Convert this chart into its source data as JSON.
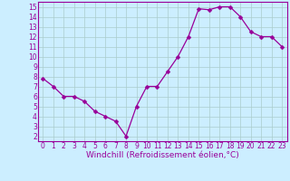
{
  "x": [
    0,
    1,
    2,
    3,
    4,
    5,
    6,
    7,
    8,
    9,
    10,
    11,
    12,
    13,
    14,
    15,
    16,
    17,
    18,
    19,
    20,
    21,
    22,
    23
  ],
  "y": [
    7.8,
    7.0,
    6.0,
    6.0,
    5.5,
    4.5,
    4.0,
    3.5,
    2.0,
    5.0,
    7.0,
    7.0,
    8.5,
    10.0,
    12.0,
    14.8,
    14.7,
    15.0,
    15.0,
    14.0,
    12.5,
    12.0,
    12.0,
    11.0
  ],
  "line_color": "#990099",
  "marker": "D",
  "markersize": 2.5,
  "linewidth": 0.9,
  "background_color": "#cceeff",
  "grid_color": "#aacccc",
  "xlabel": "Windchill (Refroidissement éolien,°C)",
  "xlabel_fontsize": 6.5,
  "xlim": [
    -0.5,
    23.5
  ],
  "ylim": [
    1.5,
    15.5
  ],
  "yticks": [
    2,
    3,
    4,
    5,
    6,
    7,
    8,
    9,
    10,
    11,
    12,
    13,
    14,
    15
  ],
  "xticks": [
    0,
    1,
    2,
    3,
    4,
    5,
    6,
    7,
    8,
    9,
    10,
    11,
    12,
    13,
    14,
    15,
    16,
    17,
    18,
    19,
    20,
    21,
    22,
    23
  ],
  "tick_fontsize": 5.5,
  "tick_color": "#990099",
  "spine_color": "#990099"
}
